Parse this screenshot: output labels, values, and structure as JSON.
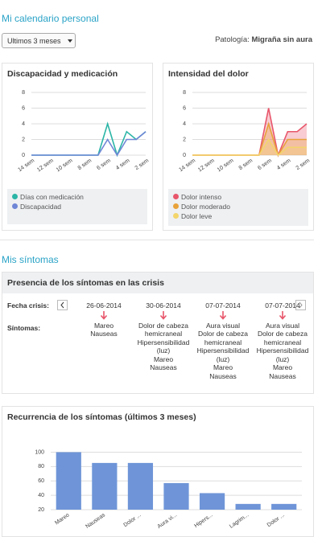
{
  "header": {
    "title": "Mi calendario personal",
    "period": "Ultimos 3 meses",
    "pathology_label": "Patología:",
    "pathology": "Migraña sin aura"
  },
  "section_title": "Mis síntomas",
  "crisis": {
    "title": "Presencia de los síntomas en las crisis",
    "date_label": "Fecha crisis:",
    "symptoms_label": "Síntomas:",
    "columns": [
      {
        "date": "26-06-2014",
        "symptoms": [
          "Mareo",
          "Nauseas"
        ]
      },
      {
        "date": "30-06-2014",
        "symptoms": [
          "Dolor de cabeza hemicraneal",
          "Hipersensibilidad (luz)",
          "Mareo",
          "Nauseas"
        ]
      },
      {
        "date": "07-07-2014",
        "symptoms": [
          "Aura visual",
          "Dolor de cabeza hemicraneal",
          "Hipersensibilidad (luz)",
          "Mareo",
          "Nauseas"
        ]
      },
      {
        "date": "07-07-2014",
        "symptoms": [
          "Aura visual",
          "Dolor de cabeza hemicraneal",
          "Hipersensibilidad (luz)",
          "Mareo",
          "Nauseas"
        ]
      }
    ]
  },
  "chart_data": [
    {
      "type": "line",
      "title": "Discapacidad y medicación",
      "categories": [
        "14 sem",
        null,
        "12 sem",
        null,
        "10 sem",
        null,
        "8 sem",
        null,
        "6 sem",
        null,
        "4 sem",
        null,
        "2 sem"
      ],
      "ylim": [
        0,
        8
      ],
      "yticks": [
        0,
        2,
        4,
        6,
        8
      ],
      "grid": true,
      "series": [
        {
          "name": "Días con medicación",
          "color": "#2bb5a6",
          "values": [
            0,
            0,
            0,
            0,
            0,
            0,
            0,
            0,
            4,
            0,
            3,
            2,
            3
          ]
        },
        {
          "name": "Discapacidad",
          "color": "#6f86d6",
          "values": [
            0,
            0,
            0,
            0,
            0,
            0,
            0,
            0,
            2,
            0,
            2,
            2,
            3
          ]
        }
      ]
    },
    {
      "type": "area",
      "title": "Intensidad del dolor",
      "categories": [
        "14 sem",
        null,
        "12 sem",
        null,
        "10 sem",
        null,
        "8 sem",
        null,
        "6 sem",
        null,
        "4 sem",
        null,
        "2 sem"
      ],
      "ylim": [
        0,
        8
      ],
      "yticks": [
        0,
        2,
        4,
        6,
        8
      ],
      "grid": true,
      "series": [
        {
          "name": "Dolor intenso",
          "color": "#e8566b",
          "values": [
            0,
            0,
            0,
            0,
            0,
            0,
            0,
            0,
            6,
            0,
            3,
            3,
            4
          ]
        },
        {
          "name": "Dolor moderado",
          "color": "#e8a23a",
          "values": [
            0,
            0,
            0,
            0,
            0,
            0,
            0,
            0,
            4,
            0,
            2,
            2,
            2
          ]
        },
        {
          "name": "Dolor leve",
          "color": "#f3d56c",
          "values": [
            0,
            0,
            0,
            0,
            0,
            0,
            0,
            0,
            2,
            0,
            1,
            1,
            1
          ]
        }
      ]
    },
    {
      "type": "bar",
      "title": "Recurrencia de los síntomas (últimos 3 meses)",
      "categories": [
        "Mareo",
        "Nauseas",
        "Dolor ...",
        "Aura vi...",
        "Hipers...",
        "Lagrim...",
        "Dolor ..."
      ],
      "values": [
        100,
        85,
        85,
        57,
        43,
        28,
        28
      ],
      "color": "#6f95d8",
      "ylim": [
        20,
        105
      ],
      "yticks": [
        20,
        40,
        60,
        80,
        100
      ],
      "grid": true
    }
  ]
}
